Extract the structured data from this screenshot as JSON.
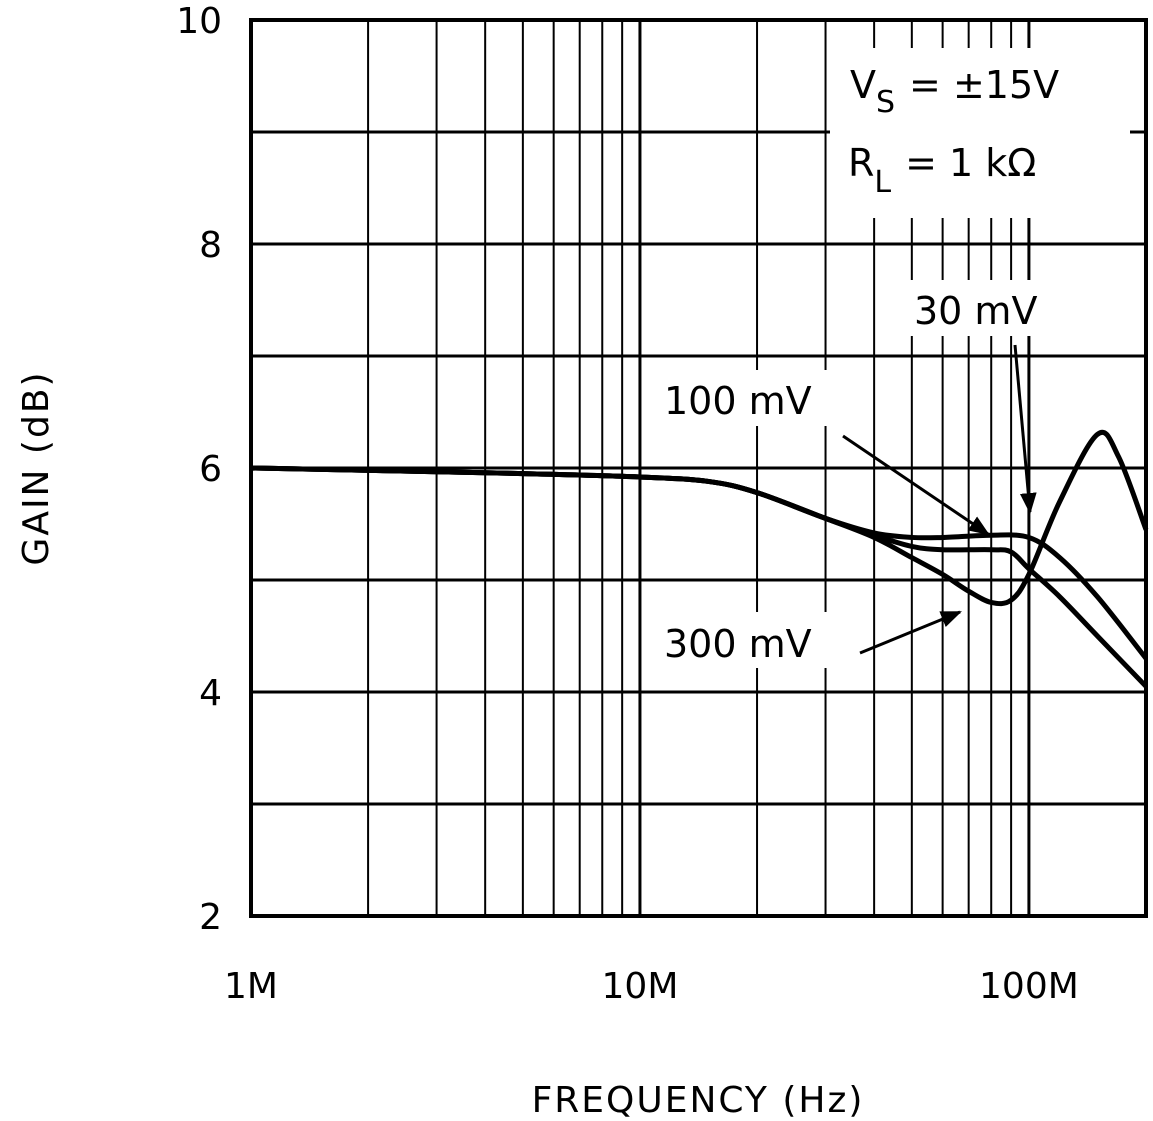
{
  "chart_data": {
    "type": "line",
    "title": "",
    "xlabel": "FREQUENCY (Hz)",
    "ylabel": "GAIN (dB)",
    "x_scale": "log",
    "xlim": [
      1000000,
      200000000
    ],
    "ylim": [
      2,
      10
    ],
    "x_ticks": [
      {
        "value": 1000000,
        "label": "1M"
      },
      {
        "value": 10000000,
        "label": "10M"
      },
      {
        "value": 100000000,
        "label": "100M"
      }
    ],
    "y_ticks": [
      {
        "value": 2,
        "label": "2"
      },
      {
        "value": 4,
        "label": "4"
      },
      {
        "value": 6,
        "label": "6"
      },
      {
        "value": 8,
        "label": "8"
      },
      {
        "value": 10,
        "label": "10"
      }
    ],
    "grid": true,
    "conditions": {
      "line1_main": "V",
      "line1_sub": "S",
      "line1_rest": "=  ±15V",
      "line2_main": "R",
      "line2_sub": "L",
      "line2_rest": "=  1 kΩ"
    },
    "series": [
      {
        "name": "30 mV",
        "x": [
          1000000,
          5000000,
          10000000,
          15000000,
          20000000,
          30000000,
          40000000,
          50000000,
          60000000,
          80000000,
          100000000,
          120000000,
          150000000,
          200000000
        ],
        "y": [
          6.0,
          5.95,
          5.92,
          5.88,
          5.78,
          5.55,
          5.42,
          5.38,
          5.38,
          5.4,
          5.38,
          5.2,
          4.85,
          4.3
        ]
      },
      {
        "name": "100 mV",
        "x": [
          1000000,
          5000000,
          10000000,
          15000000,
          20000000,
          30000000,
          40000000,
          50000000,
          60000000,
          80000000,
          90000000,
          100000000,
          120000000,
          150000000,
          200000000
        ],
        "y": [
          6.0,
          5.95,
          5.92,
          5.88,
          5.78,
          5.55,
          5.4,
          5.3,
          5.27,
          5.27,
          5.25,
          5.1,
          4.85,
          4.5,
          4.05
        ]
      },
      {
        "name": "300 mV",
        "x": [
          1000000,
          5000000,
          10000000,
          15000000,
          20000000,
          30000000,
          40000000,
          50000000,
          60000000,
          70000000,
          80000000,
          90000000,
          100000000,
          120000000,
          150000000,
          170000000,
          200000000
        ],
        "y": [
          6.0,
          5.95,
          5.92,
          5.88,
          5.78,
          5.55,
          5.38,
          5.2,
          5.05,
          4.9,
          4.8,
          4.82,
          5.05,
          5.7,
          6.3,
          6.1,
          5.45
        ]
      }
    ],
    "annotations": [
      {
        "text": "30 mV",
        "points_to": "30 mV"
      },
      {
        "text": "100 mV",
        "points_to": "100 mV"
      },
      {
        "text": "300 mV",
        "points_to": "300 mV"
      }
    ]
  }
}
